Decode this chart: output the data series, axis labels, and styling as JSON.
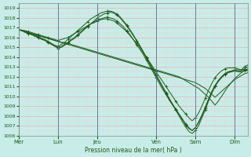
{
  "xlabel": "Pression niveau de la mer( hPa )",
  "ylim": [
    1006,
    1019.5
  ],
  "xlim": [
    0,
    280
  ],
  "yticks": [
    1006,
    1007,
    1008,
    1009,
    1010,
    1011,
    1012,
    1013,
    1014,
    1015,
    1016,
    1017,
    1018,
    1019
  ],
  "xtick_labels": [
    "Mer",
    "Lun",
    "Jeu",
    "Ven",
    "Sam",
    "Dim"
  ],
  "xtick_positions": [
    0,
    48,
    96,
    168,
    216,
    264
  ],
  "bg_color": "#c8ece8",
  "grid_major_color": "#e8b4b4",
  "grid_minor_color": "#f0d0d0",
  "line_color": "#1a5c1a",
  "line_width": 0.7,
  "marker_color": "#1a5c1a",
  "day_sep_color": "#8888aa",
  "series": [
    {
      "x": [
        0,
        4,
        8,
        12,
        16,
        20,
        24,
        28,
        32,
        36,
        40,
        44,
        48,
        52,
        56,
        60,
        64,
        68,
        72,
        76,
        80,
        84,
        88,
        92,
        96,
        100,
        104,
        108,
        112,
        116,
        120,
        124,
        128,
        132,
        136,
        140,
        144,
        148,
        152,
        156,
        160,
        164,
        168,
        172,
        176,
        180,
        184,
        188,
        192,
        196,
        200,
        204,
        208,
        212,
        216,
        220,
        224,
        228,
        232,
        236,
        240,
        244,
        248,
        252,
        256,
        260,
        264,
        268,
        272,
        276,
        280
      ],
      "y": [
        1016.8,
        1016.7,
        1016.6,
        1016.5,
        1016.4,
        1016.3,
        1016.2,
        1016.1,
        1016.0,
        1015.9,
        1015.8,
        1015.7,
        1015.6,
        1015.5,
        1015.5,
        1015.4,
        1015.3,
        1015.2,
        1015.1,
        1015.0,
        1014.9,
        1014.8,
        1014.7,
        1014.6,
        1014.5,
        1014.4,
        1014.3,
        1014.2,
        1014.1,
        1014.0,
        1013.9,
        1013.8,
        1013.7,
        1013.6,
        1013.5,
        1013.4,
        1013.3,
        1013.2,
        1013.1,
        1013.0,
        1012.9,
        1012.8,
        1012.7,
        1012.6,
        1012.5,
        1012.4,
        1012.3,
        1012.2,
        1012.1,
        1012.0,
        1011.8,
        1011.6,
        1011.4,
        1011.2,
        1011.0,
        1010.8,
        1010.5,
        1010.2,
        1009.9,
        1009.5,
        1009.1,
        1009.5,
        1010.0,
        1010.5,
        1011.0,
        1011.4,
        1011.8,
        1012.1,
        1012.4,
        1012.6,
        1012.8
      ],
      "marker": false
    },
    {
      "x": [
        0,
        4,
        8,
        12,
        16,
        20,
        24,
        28,
        32,
        36,
        40,
        44,
        48,
        52,
        56,
        60,
        64,
        68,
        72,
        76,
        80,
        84,
        88,
        92,
        96,
        100,
        104,
        108,
        112,
        116,
        120,
        124,
        128,
        132,
        136,
        140,
        144,
        148,
        152,
        156,
        160,
        164,
        168,
        172,
        176,
        180,
        184,
        188,
        192,
        196,
        200,
        204,
        208,
        212,
        216,
        220,
        224,
        228,
        232,
        236,
        240,
        244,
        248,
        252,
        256,
        260,
        264,
        268,
        272,
        276,
        280
      ],
      "y": [
        1016.8,
        1016.7,
        1016.6,
        1016.5,
        1016.4,
        1016.3,
        1016.2,
        1016.1,
        1016.0,
        1015.9,
        1015.8,
        1015.7,
        1015.6,
        1015.5,
        1015.4,
        1015.3,
        1015.2,
        1015.1,
        1015.0,
        1014.9,
        1014.8,
        1014.7,
        1014.6,
        1014.5,
        1014.4,
        1014.3,
        1014.2,
        1014.1,
        1014.0,
        1013.9,
        1013.8,
        1013.7,
        1013.6,
        1013.5,
        1013.4,
        1013.3,
        1013.2,
        1013.1,
        1013.0,
        1012.9,
        1012.8,
        1012.7,
        1012.6,
        1012.5,
        1012.4,
        1012.3,
        1012.2,
        1012.1,
        1012.0,
        1011.9,
        1011.8,
        1011.7,
        1011.6,
        1011.5,
        1011.4,
        1011.2,
        1011.0,
        1010.8,
        1010.5,
        1010.2,
        1009.9,
        1010.2,
        1010.5,
        1010.8,
        1011.1,
        1011.4,
        1011.7,
        1011.9,
        1012.1,
        1012.3,
        1012.4
      ],
      "marker": false
    },
    {
      "x": [
        0,
        4,
        8,
        12,
        16,
        20,
        24,
        28,
        32,
        36,
        40,
        44,
        48,
        52,
        56,
        60,
        64,
        68,
        72,
        76,
        80,
        84,
        88,
        92,
        96,
        100,
        104,
        108,
        112,
        116,
        120,
        124,
        128,
        132,
        136,
        140,
        144,
        148,
        152,
        156,
        160,
        164,
        168,
        172,
        176,
        180,
        184,
        188,
        192,
        196,
        200,
        204,
        208,
        212,
        216,
        220,
        224,
        228,
        232,
        236,
        240,
        244,
        248,
        252,
        256,
        260,
        264,
        268,
        272,
        276,
        280
      ],
      "y": [
        1016.8,
        1016.7,
        1016.5,
        1016.4,
        1016.3,
        1016.1,
        1016.0,
        1015.8,
        1015.7,
        1015.5,
        1015.3,
        1015.1,
        1014.9,
        1015.0,
        1015.2,
        1015.4,
        1015.7,
        1015.9,
        1016.2,
        1016.5,
        1016.8,
        1017.1,
        1017.4,
        1017.7,
        1018.0,
        1018.2,
        1018.4,
        1018.5,
        1018.6,
        1018.5,
        1018.3,
        1018.0,
        1017.6,
        1017.2,
        1016.7,
        1016.2,
        1015.7,
        1015.2,
        1014.6,
        1014.0,
        1013.4,
        1012.8,
        1012.2,
        1011.6,
        1011.0,
        1010.4,
        1009.8,
        1009.2,
        1008.6,
        1008.0,
        1007.4,
        1006.9,
        1006.4,
        1006.2,
        1006.5,
        1007.0,
        1007.8,
        1008.6,
        1009.5,
        1010.3,
        1011.0,
        1011.6,
        1012.0,
        1012.3,
        1012.5,
        1012.6,
        1012.7,
        1012.7,
        1012.7,
        1013.0,
        1013.2
      ],
      "marker": true
    },
    {
      "x": [
        0,
        4,
        8,
        12,
        16,
        20,
        24,
        28,
        32,
        36,
        40,
        44,
        48,
        52,
        56,
        60,
        64,
        68,
        72,
        76,
        80,
        84,
        88,
        92,
        96,
        100,
        104,
        108,
        112,
        116,
        120,
        124,
        128,
        132,
        136,
        140,
        144,
        148,
        152,
        156,
        160,
        164,
        168,
        172,
        176,
        180,
        184,
        188,
        192,
        196,
        200,
        204,
        208,
        212,
        216,
        220,
        224,
        228,
        232,
        236,
        240,
        244,
        248,
        252,
        256,
        260,
        264,
        268,
        272,
        276,
        280
      ],
      "y": [
        1016.8,
        1016.7,
        1016.6,
        1016.5,
        1016.3,
        1016.2,
        1016.1,
        1015.9,
        1015.8,
        1015.6,
        1015.4,
        1015.2,
        1015.1,
        1015.3,
        1015.5,
        1015.8,
        1016.1,
        1016.4,
        1016.7,
        1017.0,
        1017.3,
        1017.6,
        1017.9,
        1018.1,
        1018.3,
        1018.5,
        1018.6,
        1018.7,
        1018.7,
        1018.6,
        1018.4,
        1018.1,
        1017.7,
        1017.3,
        1016.8,
        1016.3,
        1015.7,
        1015.1,
        1014.5,
        1013.9,
        1013.3,
        1012.7,
        1012.1,
        1011.5,
        1010.9,
        1010.3,
        1009.7,
        1009.2,
        1008.7,
        1008.2,
        1007.7,
        1007.2,
        1006.8,
        1006.5,
        1006.8,
        1007.3,
        1008.0,
        1008.8,
        1009.6,
        1010.4,
        1011.0,
        1011.5,
        1011.9,
        1012.2,
        1012.4,
        1012.5,
        1012.6,
        1012.6,
        1012.6,
        1012.8,
        1013.0
      ],
      "marker": true
    },
    {
      "x": [
        0,
        4,
        8,
        12,
        16,
        20,
        24,
        28,
        32,
        36,
        40,
        44,
        48,
        52,
        56,
        60,
        64,
        68,
        72,
        76,
        80,
        84,
        88,
        92,
        96,
        100,
        104,
        108,
        112,
        116,
        120,
        124,
        128,
        132,
        136,
        140,
        144,
        148,
        152,
        156,
        160,
        164,
        168,
        172,
        176,
        180,
        184,
        188,
        192,
        196,
        200,
        204,
        208,
        212,
        216,
        220,
        224,
        228,
        232,
        236,
        240,
        244,
        248,
        252,
        256,
        260,
        264,
        268,
        272,
        276,
        280
      ],
      "y": [
        1016.8,
        1016.7,
        1016.6,
        1016.4,
        1016.3,
        1016.2,
        1016.0,
        1015.9,
        1015.7,
        1015.5,
        1015.3,
        1015.2,
        1015.0,
        1015.1,
        1015.3,
        1015.5,
        1015.8,
        1016.0,
        1016.3,
        1016.6,
        1016.9,
        1017.1,
        1017.4,
        1017.6,
        1017.8,
        1017.9,
        1018.0,
        1018.1,
        1018.0,
        1017.9,
        1017.7,
        1017.4,
        1017.1,
        1016.7,
        1016.3,
        1015.8,
        1015.3,
        1014.8,
        1014.3,
        1013.7,
        1013.1,
        1012.5,
        1011.9,
        1011.3,
        1010.7,
        1010.2,
        1009.6,
        1009.1,
        1008.6,
        1008.1,
        1007.6,
        1007.1,
        1006.7,
        1006.5,
        1006.8,
        1007.4,
        1008.1,
        1008.9,
        1009.7,
        1010.5,
        1011.1,
        1011.6,
        1012.0,
        1012.3,
        1012.5,
        1012.5,
        1012.6,
        1012.5,
        1012.5,
        1012.6,
        1012.7
      ],
      "marker": true
    },
    {
      "x": [
        0,
        4,
        8,
        12,
        16,
        20,
        24,
        28,
        32,
        36,
        40,
        44,
        48,
        52,
        56,
        60,
        64,
        68,
        72,
        76,
        80,
        84,
        88,
        92,
        96,
        100,
        104,
        108,
        112,
        116,
        120,
        124,
        128,
        132,
        136,
        140,
        144,
        148,
        152,
        156,
        160,
        164,
        168,
        172,
        176,
        180,
        184,
        188,
        192,
        196,
        200,
        204,
        208,
        212,
        216,
        220,
        224,
        228,
        232,
        236,
        240,
        244,
        248,
        252,
        256,
        260,
        264,
        268,
        272,
        276,
        280
      ],
      "y": [
        1016.8,
        1016.75,
        1016.7,
        1016.6,
        1016.5,
        1016.4,
        1016.3,
        1016.2,
        1016.1,
        1016.0,
        1015.9,
        1015.8,
        1015.7,
        1015.8,
        1015.9,
        1016.0,
        1016.2,
        1016.4,
        1016.6,
        1016.8,
        1017.0,
        1017.2,
        1017.4,
        1017.5,
        1017.7,
        1017.8,
        1017.9,
        1017.9,
        1017.8,
        1017.7,
        1017.5,
        1017.2,
        1016.9,
        1016.6,
        1016.2,
        1015.8,
        1015.4,
        1015.0,
        1014.5,
        1014.0,
        1013.5,
        1013.0,
        1012.5,
        1012.0,
        1011.5,
        1011.0,
        1010.5,
        1010.0,
        1009.5,
        1009.0,
        1008.6,
        1008.2,
        1007.8,
        1007.5,
        1007.8,
        1008.3,
        1009.0,
        1009.8,
        1010.6,
        1011.3,
        1011.9,
        1012.3,
        1012.6,
        1012.8,
        1012.9,
        1012.9,
        1012.9,
        1012.8,
        1012.7,
        1012.7,
        1012.6
      ],
      "marker": true
    }
  ]
}
